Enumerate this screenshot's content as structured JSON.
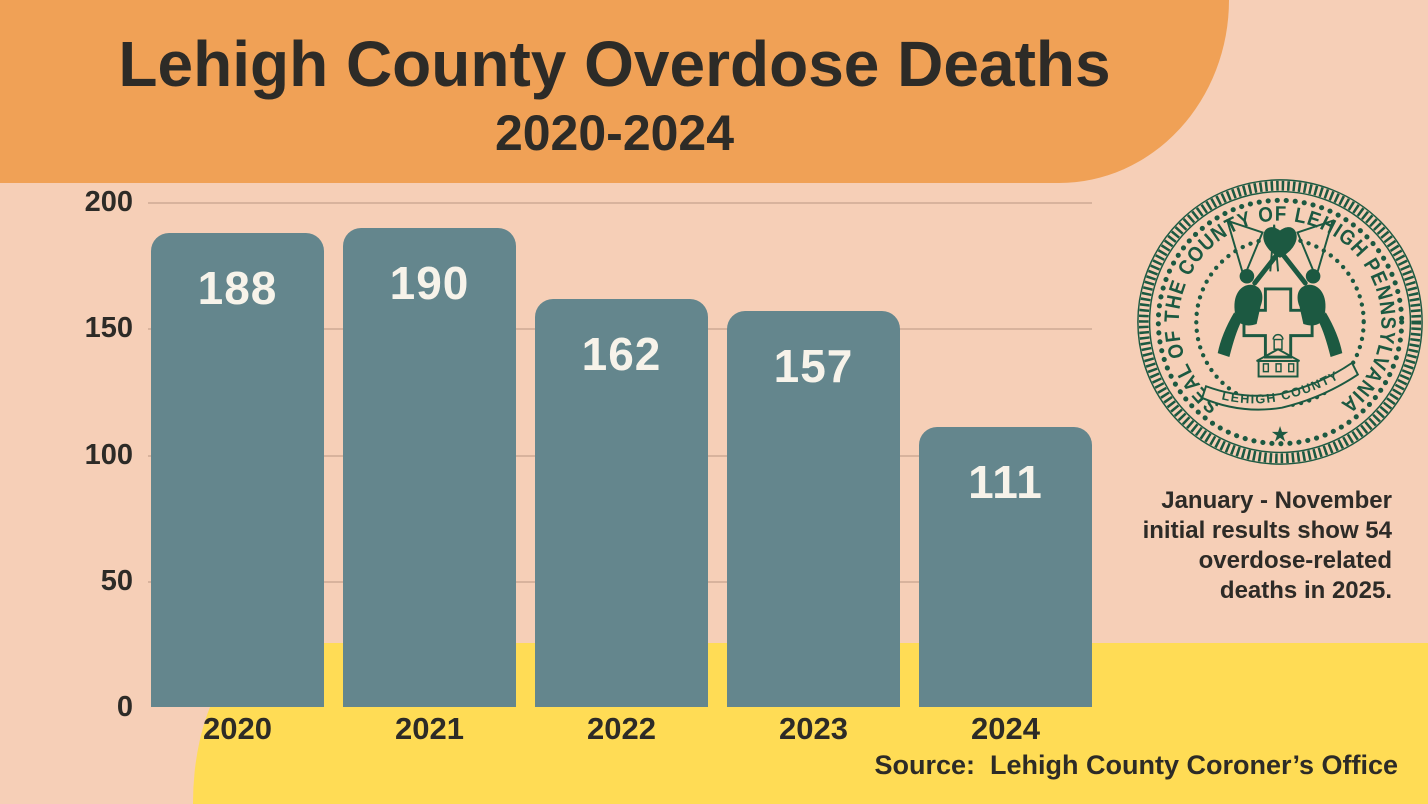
{
  "header": {
    "title": "Lehigh County Overdose Deaths",
    "subtitle": "2020-2024"
  },
  "chart_data": {
    "type": "bar",
    "title": "Lehigh County Overdose Deaths 2020-2024",
    "categories": [
      "2020",
      "2021",
      "2022",
      "2023",
      "2024"
    ],
    "values": [
      188,
      190,
      162,
      157,
      111
    ],
    "xlabel": "",
    "ylabel": "",
    "ylim": [
      0,
      200
    ],
    "yticks": [
      "200",
      "150",
      "100",
      "50",
      "0"
    ],
    "grid": true,
    "legend": "none",
    "bar_color": "#64868D",
    "value_label_color": "#F7F3EA"
  },
  "seal": {
    "ring_text": "SEAL OF THE COUNTY OF LEHIGH PENNSYLVANIA",
    "banner_text": "LEHIGH  COUNTY",
    "star": "★",
    "color": "#1C5941"
  },
  "note": {
    "lines": [
      "January - November",
      "initial results show 54",
      "overdose-related",
      "deaths in 2025."
    ]
  },
  "source": {
    "label": "Source:  Lehigh County Coroner’s Office"
  },
  "colors": {
    "header_orange": "#F0A156",
    "background_peach": "#F6CFB7",
    "band_yellow": "#FFDC55",
    "ink": "#2D2B27",
    "seal_green": "#1C5941"
  }
}
